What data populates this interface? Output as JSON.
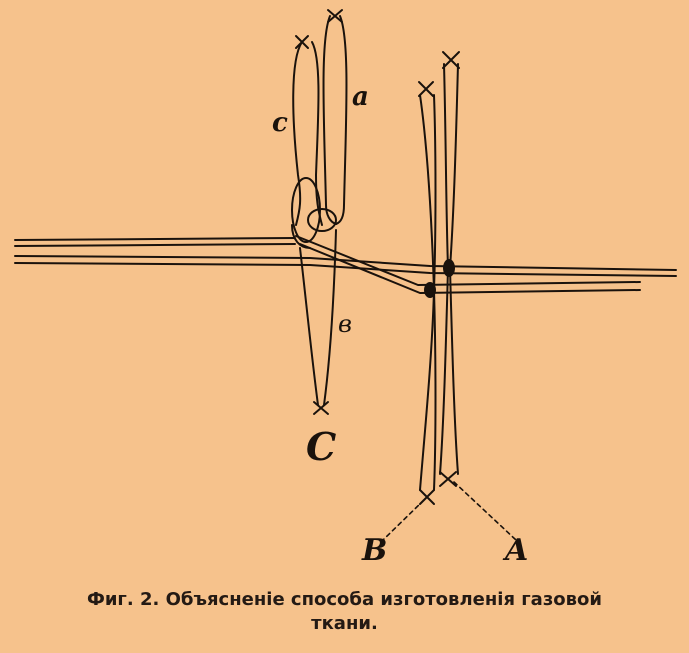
{
  "figure": {
    "labels": {
      "a": "a",
      "c_lower": "c",
      "b": "в",
      "C": "C",
      "B": "B",
      "A": "A"
    },
    "caption": {
      "line1": "Фиг. 2. Объясненіе способа изготовленія газовой",
      "line2": "ткани."
    },
    "colors": {
      "background": "#f6c28c",
      "ink": "#1a120c"
    }
  }
}
